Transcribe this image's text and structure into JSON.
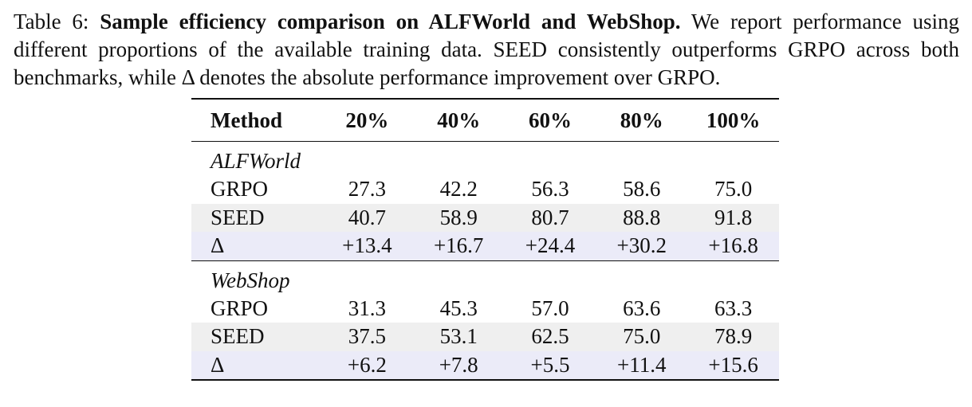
{
  "caption": {
    "label": "Table 6: ",
    "title": "Sample efficiency comparison on ALFWorld and WebShop.",
    "text": " We report performance using different proportions of the available training data. SEED consistently outperforms GRPO across both benchmarks, while Δ denotes the absolute performance improvement over GRPO."
  },
  "table": {
    "headers": [
      "Method",
      "20%",
      "40%",
      "60%",
      "80%",
      "100%"
    ],
    "sections": [
      {
        "name": "ALFWorld",
        "rows": [
          {
            "method": "GRPO",
            "values": [
              "27.3",
              "42.2",
              "56.3",
              "58.6",
              "75.0"
            ]
          },
          {
            "method": "SEED",
            "values": [
              "40.7",
              "58.9",
              "80.7",
              "88.8",
              "91.8"
            ]
          },
          {
            "method": "Δ",
            "values": [
              "+13.4",
              "+16.7",
              "+24.4",
              "+30.2",
              "+16.8"
            ]
          }
        ]
      },
      {
        "name": "WebShop",
        "rows": [
          {
            "method": "GRPO",
            "values": [
              "31.3",
              "45.3",
              "57.0",
              "63.6",
              "63.3"
            ]
          },
          {
            "method": "SEED",
            "values": [
              "37.5",
              "53.1",
              "62.5",
              "75.0",
              "78.9"
            ]
          },
          {
            "method": "Δ",
            "values": [
              "+6.2",
              "+7.8",
              "+5.5",
              "+11.4",
              "+15.6"
            ]
          }
        ]
      }
    ]
  },
  "colors": {
    "seed_row": "#efefef",
    "delta_row": "#ebebf8"
  }
}
